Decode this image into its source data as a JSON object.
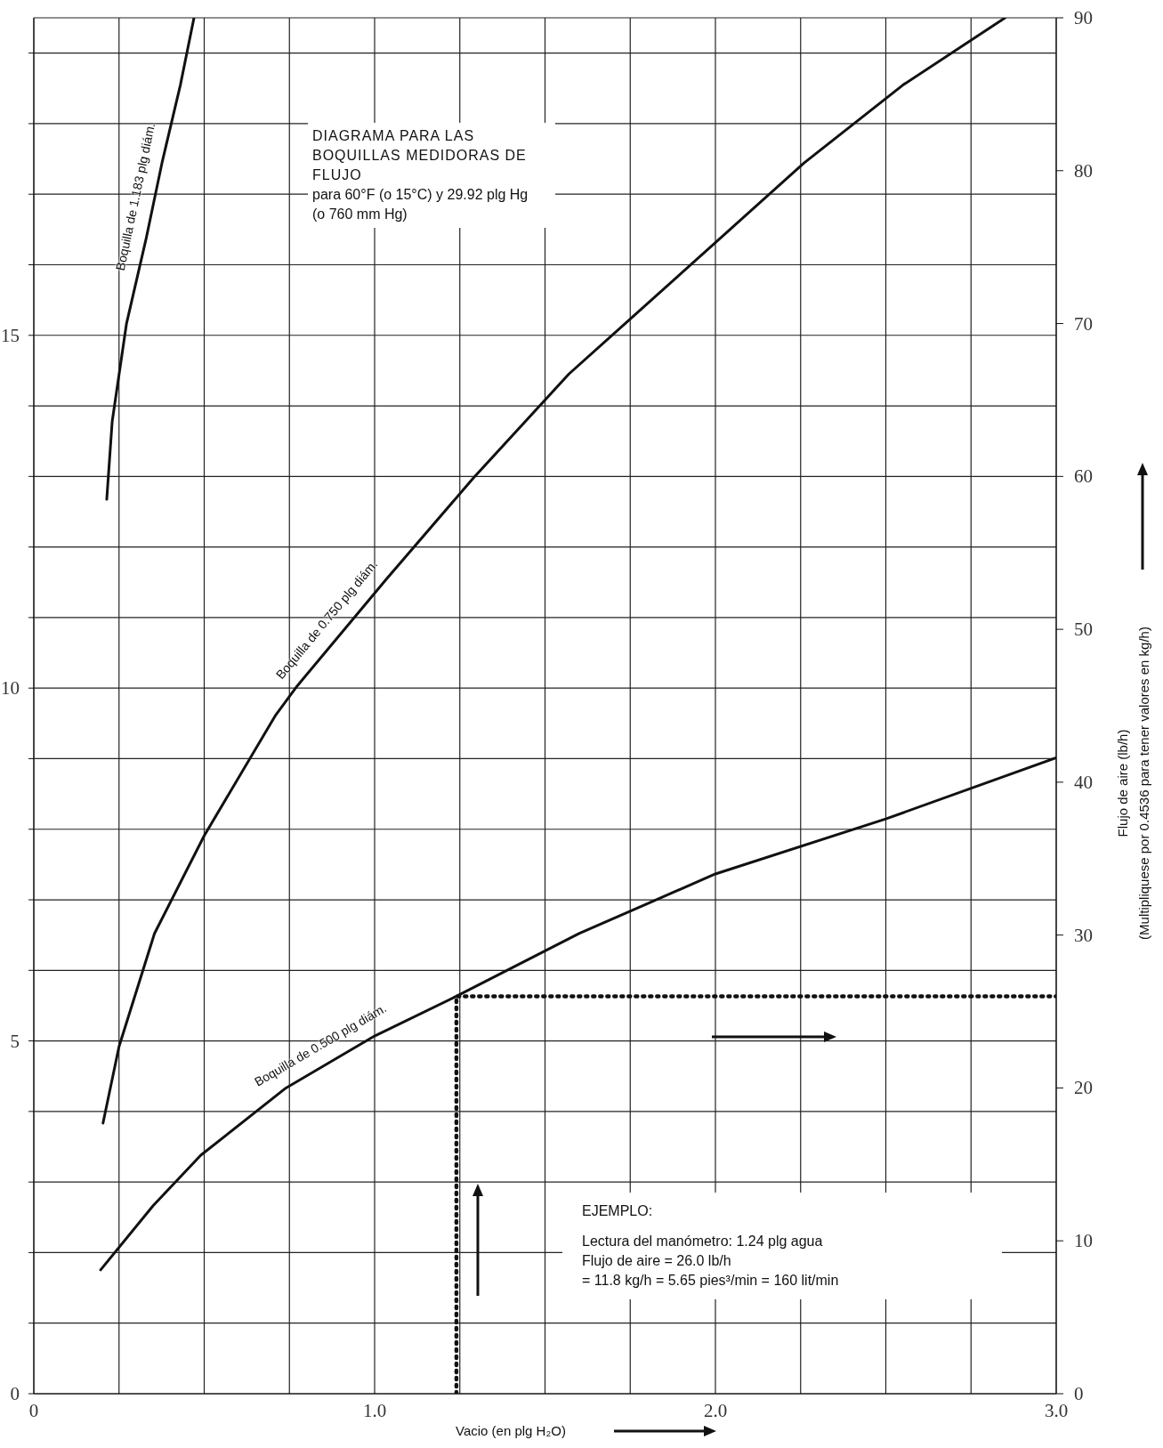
{
  "chart_data": {
    "type": "line",
    "title": "DIAGRAMA PARA LAS BOQUILLAS MEDIDORAS DE FLUJO",
    "subtitle": "para 60°F (o 15°C) y 29.92 plg Hg (o 760 mm Hg)",
    "xlabel": "Vacio (en plg H₂O)",
    "y2label": "Flujo de aire (lb/h)",
    "annotations": [
      "EJEMPLO:",
      "Lectura del manómetro: 1.24 plg agua",
      "Flujo de aire = 26.0 lb/h",
      "= 11.8 kg/h = 5.65 pies³/min = 160 lit/min",
      "(Multipliquese por 0.4536 para tener valores en kg/h)"
    ],
    "xlim": [
      0,
      3.0
    ],
    "xticks": [
      0,
      {
        "value": 0.25,
        "label": null
      },
      {
        "value": 0.5,
        "label": null
      },
      {
        "value": 0.75,
        "label": null
      },
      {
        "value": 1.0,
        "label": "1.0"
      },
      {
        "value": 1.25,
        "label": null
      },
      {
        "value": 1.5,
        "label": null
      },
      {
        "value": 1.75,
        "label": null
      },
      {
        "value": 2.0,
        "label": "2.0"
      },
      {
        "value": 2.25,
        "label": null
      },
      {
        "value": 2.5,
        "label": null
      },
      {
        "value": 2.75,
        "label": null
      },
      {
        "value": 3.0,
        "label": "3.0"
      }
    ],
    "ylim": [
      0,
      19.5
    ],
    "yticks": [
      0,
      {
        "value": 1,
        "label": null
      },
      {
        "value": 2,
        "label": null
      },
      {
        "value": 3,
        "label": null
      },
      {
        "value": 4,
        "label": null
      },
      5,
      {
        "value": 6,
        "label": null
      },
      {
        "value": 7,
        "label": null
      },
      {
        "value": 8,
        "label": null
      },
      {
        "value": 9,
        "label": null
      },
      10,
      {
        "value": 11,
        "label": null
      },
      {
        "value": 12,
        "label": null
      },
      {
        "value": 13,
        "label": null
      },
      {
        "value": 14,
        "label": null
      },
      15,
      {
        "value": 16,
        "label": null
      },
      {
        "value": 17,
        "label": null
      },
      {
        "value": 18,
        "label": null
      },
      {
        "value": 19,
        "label": null
      }
    ],
    "y2lim": [
      0,
      90
    ],
    "y2ticks": [
      0,
      10,
      20,
      30,
      40,
      50,
      60,
      70,
      80,
      90
    ],
    "grid": true,
    "marker": "none",
    "series": [
      {
        "name": "Boquilla de 1.183 plg diám.",
        "color": "#111111",
        "axis": "y2",
        "x": [
          0.214,
          0.23,
          0.272,
          0.33,
          0.376,
          0.43,
          0.47
        ],
        "values": [
          58.5,
          63.6,
          70.0,
          75.6,
          80.5,
          85.6,
          90.0
        ]
      },
      {
        "name": "Boquilla de 0.750 plg diám.",
        "color": "#111111",
        "axis": "y2",
        "x": [
          0.203,
          0.25,
          0.354,
          0.5,
          0.71,
          0.773,
          1.035,
          1.29,
          1.57,
          1.74,
          2.05,
          2.26,
          2.55,
          2.85
        ],
        "values": [
          17.7,
          22.7,
          30.1,
          36.5,
          44.4,
          46.3,
          53.3,
          59.9,
          66.7,
          70.1,
          76.3,
          80.5,
          85.6,
          90.0
        ]
      },
      {
        "name": "Boquilla de 0.500 plg diám.",
        "color": "#111111",
        "axis": "y2",
        "x": [
          0.196,
          0.35,
          0.49,
          0.74,
          1.0,
          1.24,
          1.6,
          2.0,
          2.5,
          3.0
        ],
        "values": [
          8.1,
          12.3,
          15.6,
          20.0,
          23.4,
          26.0,
          30.1,
          34.0,
          37.6,
          41.6
        ]
      },
      {
        "color": "#111111",
        "axis": "y2",
        "line_style": "dotted",
        "x": [
          1.24,
          1.24,
          3.0
        ],
        "values": [
          0,
          26.0,
          26.0
        ]
      }
    ]
  }
}
